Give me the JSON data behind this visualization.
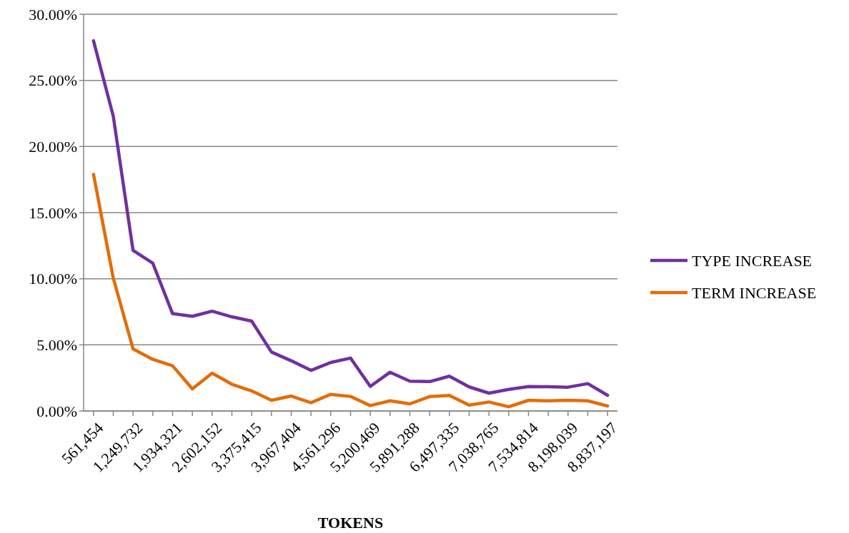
{
  "chart_data": {
    "type": "line",
    "xlabel": "TOKENS",
    "categories": [
      "561,454",
      null,
      "1,249,732",
      null,
      "1,934,321",
      null,
      "2,602,152",
      null,
      "3,375,415",
      null,
      "3,967,404",
      null,
      "4,561,296",
      null,
      "5,200,469",
      null,
      "5,891,288",
      null,
      "6,497,335",
      null,
      "7,038,765",
      null,
      "7,534,814",
      null,
      "8,198,039",
      null,
      "8,837,197"
    ],
    "series": [
      {
        "name": "TYPE INCREASE",
        "color": "#7030a0",
        "values": [
          28.0,
          22.3,
          12.15,
          11.17,
          7.36,
          7.16,
          7.55,
          7.12,
          6.8,
          4.46,
          3.8,
          3.07,
          3.67,
          4.0,
          1.86,
          2.93,
          2.25,
          2.22,
          2.63,
          1.82,
          1.35,
          1.63,
          1.85,
          1.84,
          1.8,
          2.07,
          1.19
        ]
      },
      {
        "name": "TERM INCREASE",
        "color": "#e36c09",
        "values": [
          17.9,
          10.05,
          4.7,
          3.9,
          3.42,
          1.67,
          2.86,
          2.02,
          1.52,
          0.81,
          1.13,
          0.63,
          1.26,
          1.1,
          0.41,
          0.77,
          0.54,
          1.09,
          1.17,
          0.45,
          0.68,
          0.32,
          0.81,
          0.77,
          0.81,
          0.77,
          0.38
        ]
      }
    ],
    "ylim": [
      0,
      30
    ],
    "yticks": [
      {
        "value": 0,
        "label": "0.00%"
      },
      {
        "value": 5,
        "label": "5.00%"
      },
      {
        "value": 10,
        "label": "10.00%"
      },
      {
        "value": 15,
        "label": "15.00%"
      },
      {
        "value": 20,
        "label": "20.00%"
      },
      {
        "value": 25,
        "label": "25.00%"
      },
      {
        "value": 30,
        "label": "30.00%"
      }
    ],
    "grid": "y",
    "legend": "right",
    "marker": "none",
    "line_style": "solid"
  }
}
